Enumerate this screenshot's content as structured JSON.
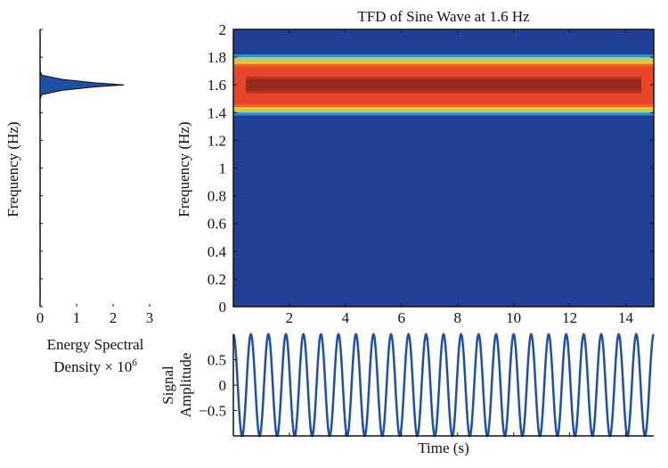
{
  "chart_data": [
    {
      "type": "area",
      "name": "energy-spectral-density",
      "xlabel_line1": "Energy Spectral",
      "xlabel_line2": "Density × 10",
      "xlabel_exp": "6",
      "ylabel": "Frequency (Hz)",
      "xlim": [
        0,
        3
      ],
      "ylim": [
        0,
        2
      ],
      "xticks": [
        "0",
        "1",
        "2",
        "3"
      ],
      "points": [
        [
          0,
          1.5
        ],
        [
          0.05,
          1.53
        ],
        [
          0.6,
          1.56
        ],
        [
          1.5,
          1.585
        ],
        [
          2.3,
          1.6
        ],
        [
          1.5,
          1.615
        ],
        [
          0.6,
          1.64
        ],
        [
          0.05,
          1.67
        ],
        [
          0,
          1.7
        ]
      ],
      "color": "#1f4fa0"
    },
    {
      "type": "heatmap",
      "name": "tfd",
      "title": "TFD of Sine Wave at 1.6 Hz",
      "ylabel": "Frequency (Hz)",
      "xlim": [
        0,
        15
      ],
      "ylim": [
        0,
        2
      ],
      "xticks": [
        "2",
        "4",
        "6",
        "8",
        "10",
        "12",
        "14"
      ],
      "yticks": [
        "0",
        "0.2",
        "0.4",
        "0.6",
        "0.8",
        "1",
        "1.2",
        "1.4",
        "1.6",
        "1.8",
        "2"
      ],
      "background": "#213f94",
      "bands": [
        {
          "f0": 1.38,
          "f1": 1.82,
          "color": "#2a8fd8"
        },
        {
          "f0": 1.4,
          "f1": 1.8,
          "color": "#a8d27a"
        },
        {
          "f0": 1.42,
          "f1": 1.77,
          "color": "#f7c229"
        },
        {
          "f0": 1.44,
          "f1": 1.75,
          "color": "#f2612b"
        },
        {
          "f0": 1.46,
          "f1": 1.73,
          "color": "#e8452a"
        },
        {
          "f0": 1.54,
          "f1": 1.66,
          "color": "#b9321f"
        },
        {
          "f0": 1.56,
          "f1": 1.64,
          "color": "#962c1f"
        }
      ]
    },
    {
      "type": "line",
      "name": "signal",
      "xlabel": "Time (s)",
      "ylabel_line1": "Signal",
      "ylabel_line2": "Amplitude",
      "frequency_hz": 1.6,
      "amplitude": 1,
      "xlim": [
        0,
        15
      ],
      "ylim": [
        -1,
        1
      ],
      "yticks": [
        "0.5",
        "0",
        "−0.5"
      ],
      "color": "#1f4fa8"
    }
  ]
}
